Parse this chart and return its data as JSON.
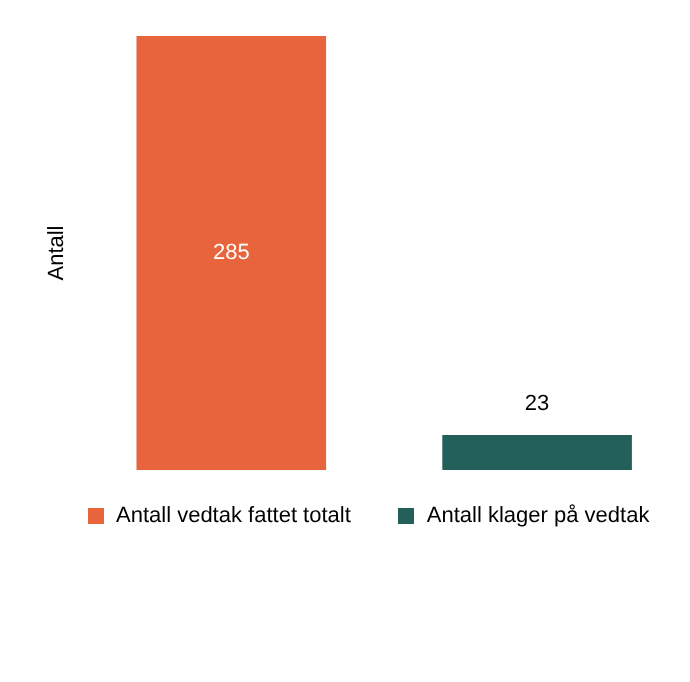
{
  "chart_data": {
    "type": "bar",
    "ylabel": "Antall",
    "categories": [
      null,
      null
    ],
    "series": [
      {
        "name": "Antall vedtak fattet totalt",
        "color": "#e8643c",
        "values": [
          285,
          null
        ]
      },
      {
        "name": "Antall klager på vedtak",
        "color": "#23605a",
        "values": [
          null,
          23
        ]
      }
    ],
    "stacked": true,
    "data_labels": true,
    "grid": false,
    "legend": "bottom"
  }
}
